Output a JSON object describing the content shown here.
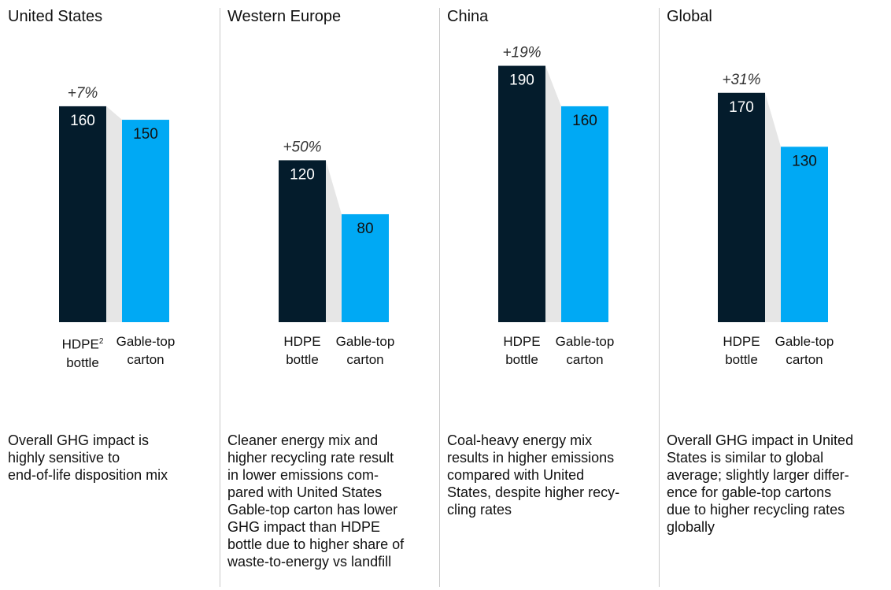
{
  "colors": {
    "hdpe": "#041c2c",
    "carton": "#00a9f4",
    "connector": "#e6e6e6"
  },
  "chart_data": [
    {
      "type": "bar",
      "title": "United States",
      "categories": [
        "HDPE bottle",
        "Gable-top carton"
      ],
      "values": [
        160,
        150
      ],
      "difference_label": "+7%",
      "note": "Overall GHG impact is highly sensitive to end-of-life disposition mix"
    },
    {
      "type": "bar",
      "title": "Western Europe",
      "categories": [
        "HDPE bottle",
        "Gable-top carton"
      ],
      "values": [
        120,
        80
      ],
      "difference_label": "+50%",
      "note": "Cleaner energy mix and higher recycling rate result in lower emissions compared with United States Gable-top carton has lower GHG impact than HDPE bottle due to higher share of waste-to-energy vs landfill"
    },
    {
      "type": "bar",
      "title": "China",
      "categories": [
        "HDPE bottle",
        "Gable-top carton"
      ],
      "values": [
        190,
        160
      ],
      "difference_label": "+19%",
      "note": "Coal-heavy energy mix results in higher emissions compared with United States, despite higher recycling rates"
    },
    {
      "type": "bar",
      "title": "Global",
      "categories": [
        "HDPE bottle",
        "Gable-top carton"
      ],
      "values": [
        170,
        130
      ],
      "difference_label": "+31%",
      "note": "Overall GHG impact in United States is similar to global average; slightly larger difference for gable-top cartons due to higher recycling rates globally"
    }
  ],
  "panels": [
    {
      "region": "United States",
      "hdpe_label": {
        "line1": "HDPE",
        "sup": "2",
        "line2": "bottle"
      },
      "carton_label": {
        "line1": "Gable-top",
        "line2": "carton"
      },
      "note_lines": [
        "Overall GHG impact is",
        "highly sensitive to",
        "end-of-life disposition mix"
      ]
    },
    {
      "region": "Western Europe",
      "hdpe_label": {
        "line1": "HDPE",
        "sup": "",
        "line2": "bottle"
      },
      "carton_label": {
        "line1": "Gable-top",
        "line2": "carton"
      },
      "note_lines": [
        "Cleaner energy mix and",
        "higher recycling rate result",
        "in lower emissions com-",
        "pared with United States",
        "Gable-top carton has lower",
        "GHG impact than HDPE",
        "bottle due to higher share of",
        "waste-to-energy vs landfill"
      ]
    },
    {
      "region": "China",
      "hdpe_label": {
        "line1": "HDPE",
        "sup": "",
        "line2": "bottle"
      },
      "carton_label": {
        "line1": "Gable-top",
        "line2": "carton"
      },
      "note_lines": [
        "Coal-heavy energy mix",
        "results in higher emissions",
        "compared with United",
        "States, despite higher recy-",
        "cling rates"
      ]
    },
    {
      "region": "Global",
      "hdpe_label": {
        "line1": "HDPE",
        "sup": "",
        "line2": "bottle"
      },
      "carton_label": {
        "line1": "Gable-top",
        "line2": "carton"
      },
      "note_lines": [
        "Overall GHG impact in United",
        "States is similar to global",
        "average; slightly larger differ-",
        "ence for gable-top cartons",
        "due to higher recycling rates",
        "globally"
      ]
    }
  ]
}
